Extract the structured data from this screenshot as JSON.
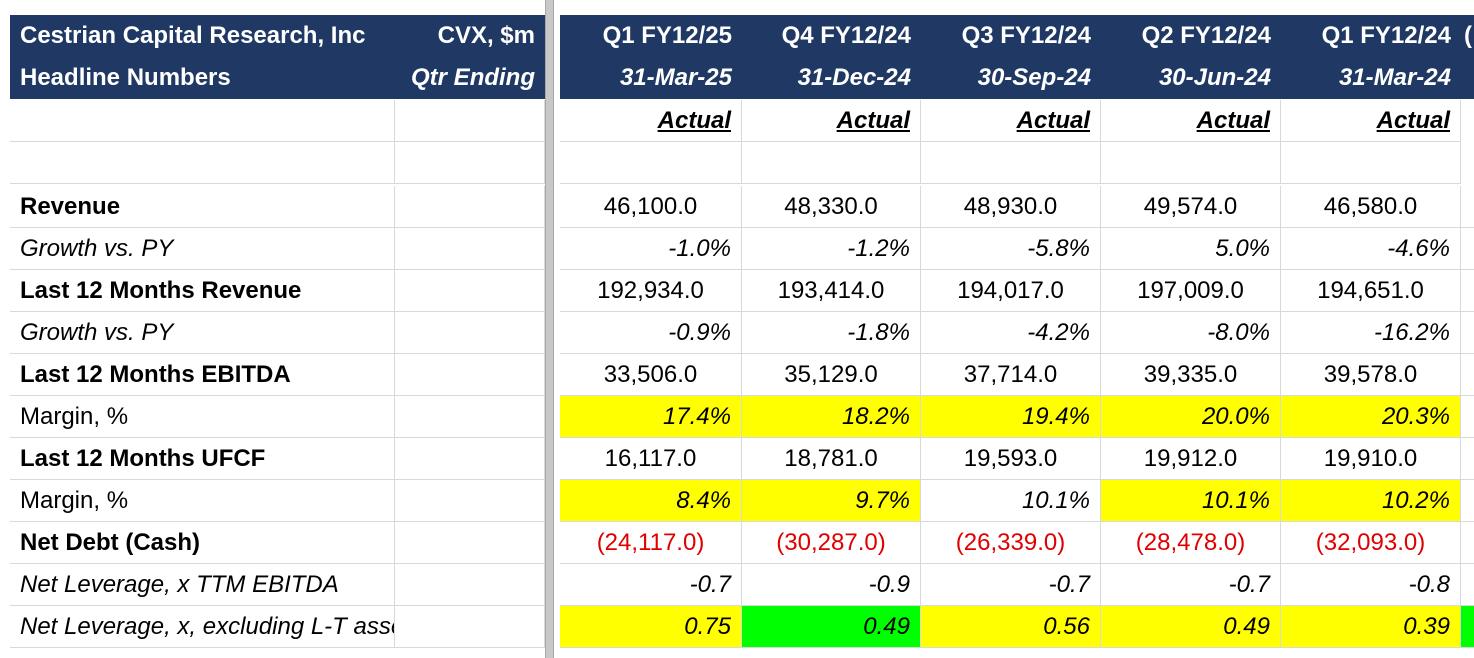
{
  "header": {
    "company": "Cestrian Capital Research, Inc",
    "ticker": "CVX, $m",
    "subtitle": "Headline Numbers",
    "qtr_label": "Qtr Ending",
    "periods": [
      {
        "quarter": "Q1 FY12/25",
        "date": "31-Mar-25",
        "status": "Actual"
      },
      {
        "quarter": "Q4 FY12/24",
        "date": "31-Dec-24",
        "status": "Actual"
      },
      {
        "quarter": "Q3 FY12/24",
        "date": "30-Sep-24",
        "status": "Actual"
      },
      {
        "quarter": "Q2 FY12/24",
        "date": "30-Jun-24",
        "status": "Actual"
      },
      {
        "quarter": "Q1 FY12/24",
        "date": "31-Mar-24",
        "status": "Actual"
      }
    ],
    "next_col_partial": "("
  },
  "rows": [
    {
      "label": "Revenue",
      "style": "bold",
      "values": [
        "46,100.0",
        "48,330.0",
        "48,930.0",
        "49,574.0",
        "46,580.0"
      ]
    },
    {
      "label": "Growth vs. PY",
      "style": "italic",
      "values": [
        "-1.0%",
        "-1.2%",
        "-5.8%",
        "5.0%",
        "-4.6%"
      ]
    },
    {
      "label": "Last 12 Months Revenue",
      "style": "bold",
      "values": [
        "192,934.0",
        "193,414.0",
        "194,017.0",
        "197,009.0",
        "194,651.0"
      ]
    },
    {
      "label": "Growth vs. PY",
      "style": "italic",
      "values": [
        "-0.9%",
        "-1.8%",
        "-4.2%",
        "-8.0%",
        "-16.2%"
      ]
    },
    {
      "label": "Last 12 Months EBITDA",
      "style": "bold",
      "values": [
        "33,506.0",
        "35,129.0",
        "37,714.0",
        "39,335.0",
        "39,578.0"
      ]
    },
    {
      "label": "Margin, %",
      "style": "normal",
      "values": [
        "17.4%",
        "18.2%",
        "19.4%",
        "20.0%",
        "20.3%"
      ],
      "highlight": [
        "#ffff00",
        "#ffff00",
        "#ffff00",
        "#ffff00",
        "#ffff00"
      ]
    },
    {
      "label": "Last 12 Months UFCF",
      "style": "bold",
      "values": [
        "16,117.0",
        "18,781.0",
        "19,593.0",
        "19,912.0",
        "19,910.0"
      ]
    },
    {
      "label": "Margin, %",
      "style": "normal",
      "values": [
        "8.4%",
        "9.7%",
        "10.1%",
        "10.1%",
        "10.2%"
      ],
      "highlight": [
        "#ffff00",
        "#ffff00",
        "",
        "#ffff00",
        "#ffff00"
      ]
    },
    {
      "label": "Net Debt (Cash)",
      "style": "bold",
      "values": [
        "(24,117.0)",
        "(30,287.0)",
        "(26,339.0)",
        "(28,478.0)",
        "(32,093.0)"
      ],
      "text_color": "#e00000"
    },
    {
      "label": "Net Leverage, x TTM EBITDA",
      "style": "italic",
      "values": [
        "-0.7",
        "-0.9",
        "-0.7",
        "-0.7",
        "-0.8"
      ]
    },
    {
      "label": "Net Leverage, x, excluding L-T assets",
      "style": "italic",
      "values": [
        "0.75",
        "0.49",
        "0.56",
        "0.49",
        "0.39"
      ],
      "highlight": [
        "#ffff00",
        "#00ff00",
        "#ffff00",
        "#ffff00",
        "#ffff00"
      ],
      "next_col_highlight": "#00ff00"
    }
  ],
  "colors": {
    "header_bg": "#1f3864",
    "header_text": "#ffffff",
    "negative": "#e00000",
    "highlight_yellow": "#ffff00",
    "highlight_green": "#00ff00"
  }
}
